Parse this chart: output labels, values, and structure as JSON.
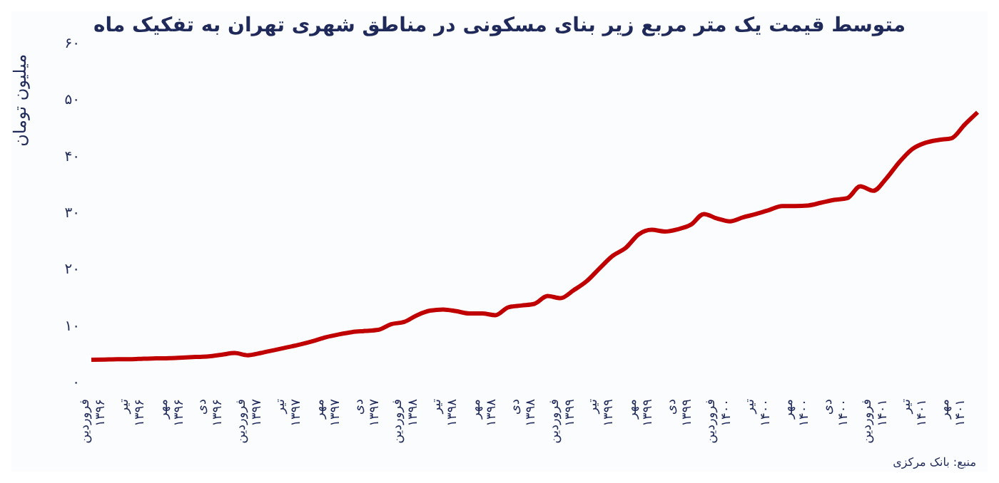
{
  "chart_data": {
    "type": "line",
    "title": "متوسط قیمت یک متر مربع زیر بنای مسکونی در مناطق شهری تهران به تفکیک ماه",
    "ylabel": "میلیون تومان",
    "categories": [
      "فروردین ۱۳۹۶",
      null,
      null,
      "تیر ۱۳۹۶",
      null,
      null,
      "مهر ۱۳۹۶",
      null,
      null,
      "دی ۱۳۹۶",
      null,
      null,
      "فروردین ۱۳۹۷",
      null,
      null,
      "تیر ۱۳۹۷",
      null,
      null,
      "مهر ۱۳۹۷",
      null,
      null,
      "دی ۱۳۹۷",
      null,
      null,
      "فروردین ۱۳۹۸",
      null,
      null,
      "تیر ۱۳۹۸",
      null,
      null,
      "مهر ۱۳۹۸",
      null,
      null,
      "دی ۱۳۹۸",
      null,
      null,
      "فروردین ۱۳۹۹",
      null,
      null,
      "تیر ۱۳۹۹",
      null,
      null,
      "مهر ۱۳۹۹",
      null,
      null,
      "دی ۱۳۹۹",
      null,
      null,
      "فروردین ۱۴۰۰",
      null,
      null,
      "تیر ۱۴۰۰",
      null,
      null,
      "مهر ۱۴۰۰",
      null,
      null,
      "دی ۱۴۰۰",
      null,
      null,
      "فروردین ۱۴۰۱",
      null,
      null,
      "تیر ۱۴۰۱",
      null,
      null,
      "مهر ۱۴۰۱",
      null,
      null
    ],
    "series": [
      {
        "color": "#c00000",
        "values": [
          3.9,
          3.95,
          4.0,
          4.0,
          4.1,
          4.15,
          4.2,
          4.3,
          4.4,
          4.5,
          4.8,
          5.1,
          4.7,
          5.1,
          5.6,
          6.1,
          6.6,
          7.2,
          7.9,
          8.4,
          8.8,
          9.0,
          9.2,
          10.2,
          10.6,
          11.8,
          12.6,
          12.8,
          12.5,
          12.1,
          12.1,
          11.8,
          13.2,
          13.5,
          13.8,
          15.2,
          14.8,
          16.2,
          17.8,
          20.1,
          22.3,
          23.7,
          26.1,
          26.9,
          26.6,
          27.0,
          27.8,
          29.7,
          28.9,
          28.4,
          29.1,
          29.7,
          30.4,
          31.1,
          31.1,
          31.2,
          31.7,
          32.2,
          32.5,
          34.6,
          33.8,
          36.0,
          38.9,
          41.2,
          42.3,
          42.8,
          43.1,
          45.5,
          47.7
        ]
      }
    ],
    "ylim": [
      0,
      60
    ],
    "yticks": [
      {
        "value": 0,
        "label": "۰"
      },
      {
        "value": 10,
        "label": "۱۰"
      },
      {
        "value": 20,
        "label": "۲۰"
      },
      {
        "value": 30,
        "label": "۳۰"
      },
      {
        "value": 40,
        "label": "۴۰"
      },
      {
        "value": 50,
        "label": "۵۰"
      },
      {
        "value": 60,
        "label": "۶۰"
      }
    ],
    "annotations": [
      "منبع: بانک مرکزی"
    ]
  }
}
